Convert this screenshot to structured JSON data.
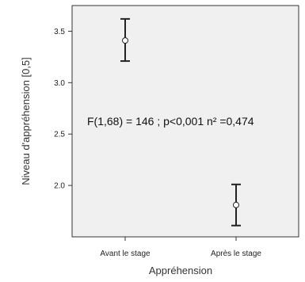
{
  "chart_data": {
    "type": "scatter",
    "subtype": "error-bar",
    "xlabel": "Appréhension",
    "ylabel": "Niveau d'appréhension [0,5]",
    "categories": [
      "Avant le stage",
      "Après le stage"
    ],
    "series": [
      {
        "means": [
          3.41,
          1.81
        ],
        "ci_low": [
          3.21,
          1.61
        ],
        "ci_high": [
          3.62,
          2.01
        ]
      }
    ],
    "ylim": [
      1.5,
      3.75
    ],
    "yticks": [
      "2.0",
      "2.5",
      "3.0",
      "3.5"
    ],
    "ytick_values": [
      2.0,
      2.5,
      3.0,
      3.5
    ],
    "annotation": "F(1,68) = 146 ; p<0,001 n² =0,474",
    "grid": false,
    "legend": "none",
    "colors": {
      "plot_background": "#f0f0f0",
      "frame": "#333333",
      "marker_fill": "#ffffff",
      "error_bar": "#222222"
    }
  }
}
